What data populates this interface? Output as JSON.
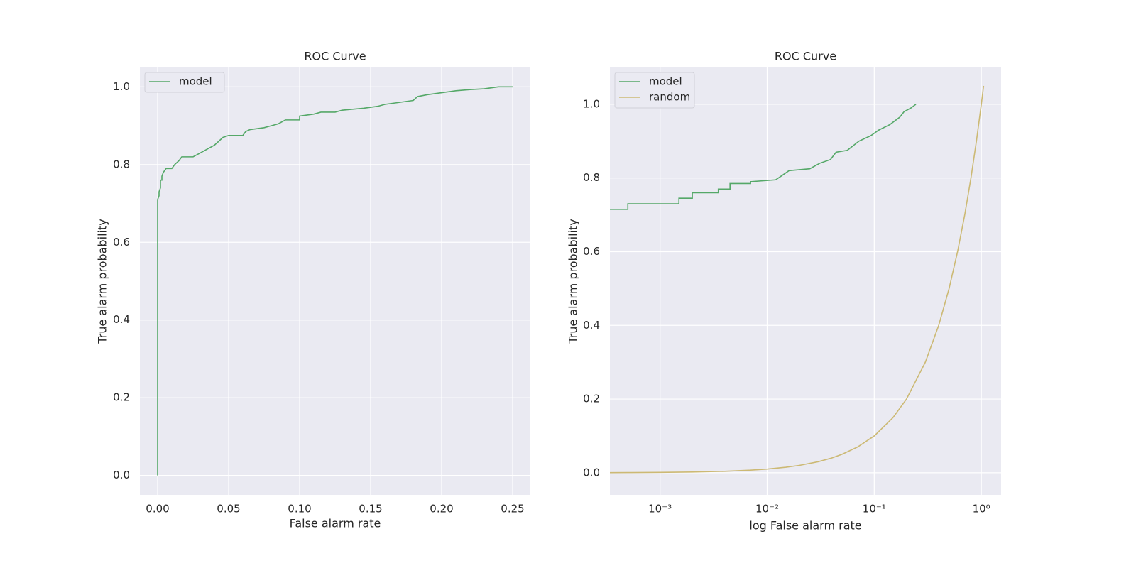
{
  "chart_data": [
    {
      "type": "line",
      "title": "ROC Curve",
      "x_label": "False alarm rate",
      "y_label": "True alarm probability",
      "xlim": [
        -0.0125,
        0.2625
      ],
      "ylim": [
        -0.05,
        1.05
      ],
      "xticks": [
        {
          "value": 0,
          "label": "0.00"
        },
        {
          "value": 0.05,
          "label": "0.05"
        },
        {
          "value": 0.1,
          "label": "0.10"
        },
        {
          "value": 0.15,
          "label": "0.15"
        },
        {
          "value": 0.2,
          "label": "0.20"
        },
        {
          "value": 0.25,
          "label": "0.25"
        }
      ],
      "yticks": [
        {
          "value": 0,
          "label": "0.0"
        },
        0.2,
        0.4,
        0.6,
        0.8,
        {
          "value": 1,
          "label": "1.0"
        }
      ],
      "grid": true,
      "legend": "upper left",
      "series": [
        {
          "name": "model",
          "color": "#55a868",
          "x": [
            0,
            0,
            0.001,
            0.001,
            0.002,
            0.002,
            0.003,
            0.003,
            0.004,
            0.005,
            0.006,
            0.01,
            0.012,
            0.015,
            0.017,
            0.025,
            0.03,
            0.035,
            0.04,
            0.043,
            0.046,
            0.05,
            0.06,
            0.062,
            0.065,
            0.075,
            0.08,
            0.085,
            0.09,
            0.1,
            0.1,
            0.11,
            0.115,
            0.125,
            0.13,
            0.145,
            0.155,
            0.16,
            0.17,
            0.18,
            0.183,
            0.19,
            0.2,
            0.21,
            0.22,
            0.23,
            0.24,
            0.25
          ],
          "values": [
            0,
            0.71,
            0.72,
            0.73,
            0.74,
            0.76,
            0.76,
            0.77,
            0.78,
            0.785,
            0.79,
            0.79,
            0.8,
            0.81,
            0.82,
            0.82,
            0.83,
            0.84,
            0.85,
            0.86,
            0.87,
            0.875,
            0.875,
            0.885,
            0.89,
            0.895,
            0.9,
            0.905,
            0.915,
            0.915,
            0.925,
            0.93,
            0.935,
            0.935,
            0.94,
            0.945,
            0.95,
            0.955,
            0.96,
            0.965,
            0.975,
            0.98,
            0.985,
            0.99,
            0.993,
            0.995,
            1.0,
            1.0
          ]
        }
      ]
    },
    {
      "type": "line",
      "title": "ROC Curve",
      "x_label": "log False alarm rate",
      "y_label": "True alarm probability",
      "xscale": "log",
      "xlim": [
        0.00034,
        1.53
      ],
      "ylim": [
        -0.06,
        1.1
      ],
      "xticks": [
        {
          "value": 0.001,
          "label": "10⁻³"
        },
        {
          "value": 0.01,
          "label": "10⁻²"
        },
        {
          "value": 0.1,
          "label": "10⁻¹"
        },
        {
          "value": 1,
          "label": "10⁰"
        }
      ],
      "yticks": [
        {
          "value": 0,
          "label": "0.0"
        },
        0.2,
        0.4,
        0.6,
        0.8,
        {
          "value": 1,
          "label": "1.0"
        }
      ],
      "grid": true,
      "legend": "upper left",
      "series": [
        {
          "name": "model",
          "color": "#55a868",
          "x": [
            0.00034,
            0.0005,
            0.0005,
            0.0015,
            0.0015,
            0.002,
            0.002,
            0.0035,
            0.0035,
            0.0045,
            0.0045,
            0.007,
            0.007,
            0.012,
            0.0135,
            0.016,
            0.025,
            0.031,
            0.039,
            0.044,
            0.056,
            0.072,
            0.093,
            0.11,
            0.14,
            0.173,
            0.19,
            0.22,
            0.245
          ],
          "values": [
            0.715,
            0.715,
            0.73,
            0.73,
            0.745,
            0.745,
            0.76,
            0.76,
            0.77,
            0.77,
            0.785,
            0.785,
            0.79,
            0.795,
            0.805,
            0.82,
            0.825,
            0.84,
            0.85,
            0.87,
            0.875,
            0.9,
            0.915,
            0.93,
            0.945,
            0.965,
            0.98,
            0.99,
            1.0
          ]
        },
        {
          "name": "random",
          "color": "#ccb974",
          "x": [
            0.00034,
            0.0005,
            0.001,
            0.002,
            0.004,
            0.007,
            0.01,
            0.015,
            0.02,
            0.03,
            0.04,
            0.05,
            0.07,
            0.1,
            0.15,
            0.2,
            0.3,
            0.4,
            0.5,
            0.6,
            0.7,
            0.8,
            0.9,
            1.0,
            1.05
          ],
          "values": [
            0.00034,
            0.0005,
            0.001,
            0.002,
            0.004,
            0.007,
            0.01,
            0.015,
            0.02,
            0.03,
            0.04,
            0.05,
            0.07,
            0.1,
            0.15,
            0.2,
            0.3,
            0.4,
            0.5,
            0.6,
            0.7,
            0.8,
            0.9,
            1.0,
            1.05
          ]
        }
      ]
    }
  ]
}
